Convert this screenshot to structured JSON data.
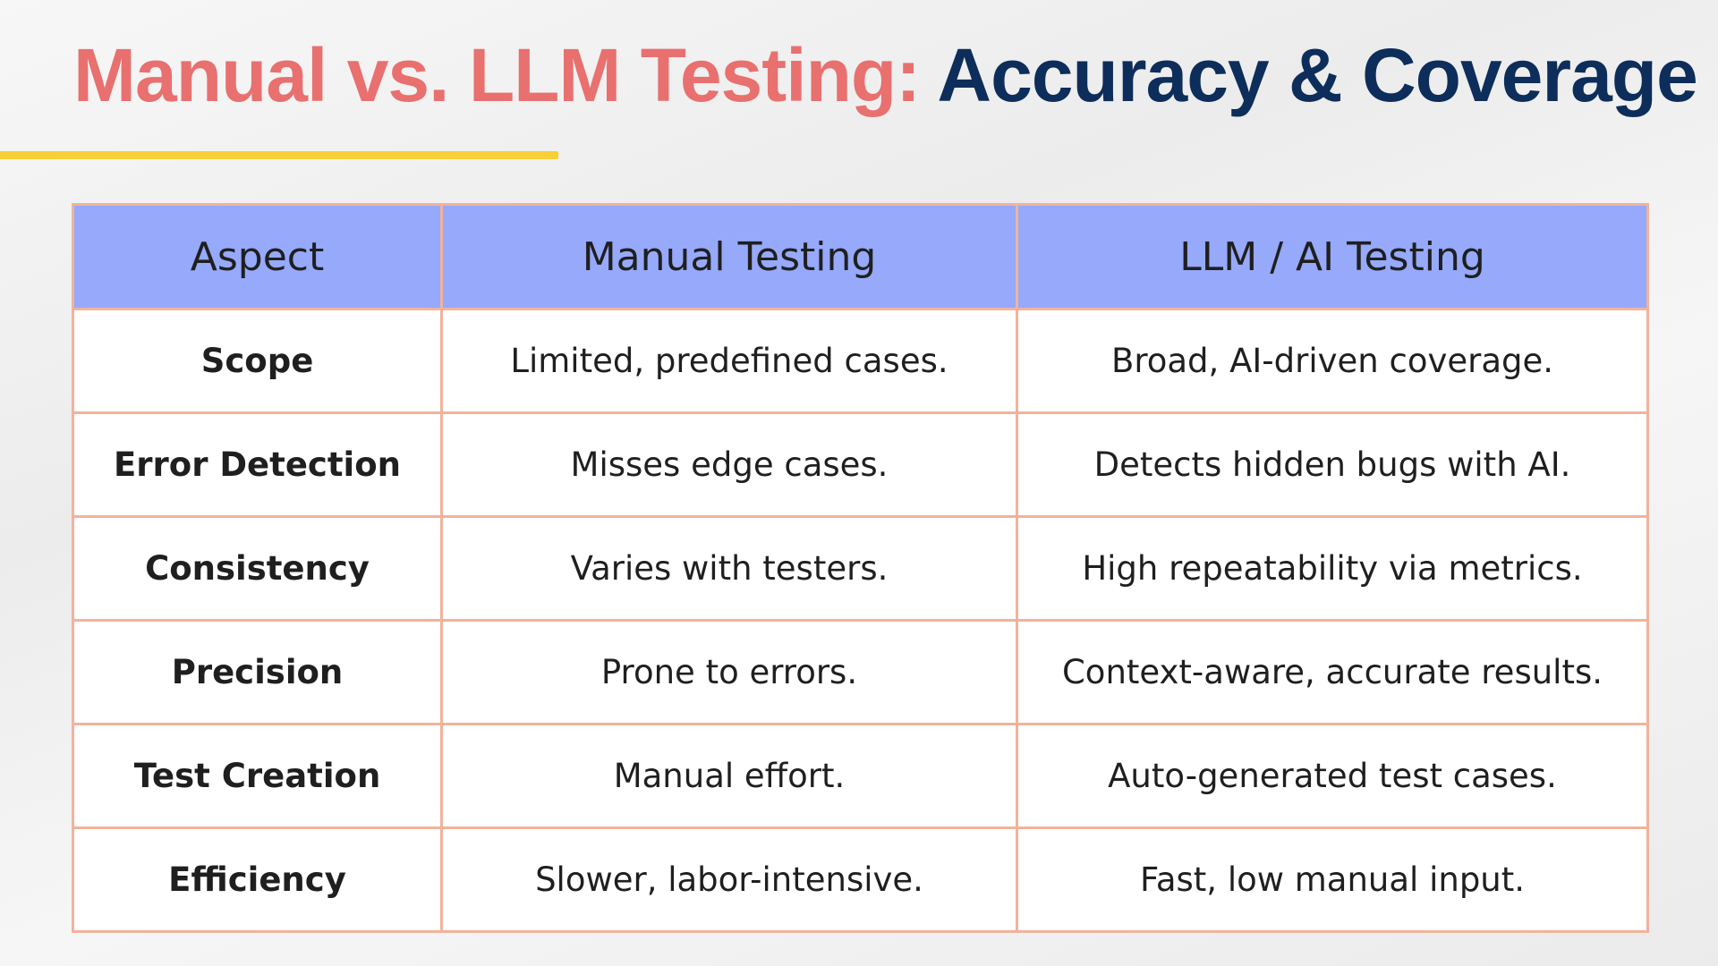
{
  "title": {
    "part1": "Manual vs. LLM Testing:",
    "part2": "Accuracy & Coverage"
  },
  "colors": {
    "title_accent": "#e8706f",
    "title_dark": "#0d2d5a",
    "underline": "#f7d038",
    "header_bg": "#96a9fb",
    "table_border": "#f1b39c"
  },
  "table": {
    "headers": [
      "Aspect",
      "Manual Testing",
      "LLM / AI Testing"
    ],
    "rows": [
      {
        "aspect": "Scope",
        "manual": "Limited, predefined cases.",
        "llm": "Broad, AI-driven coverage."
      },
      {
        "aspect": "Error Detection",
        "manual": "Misses edge cases.",
        "llm": "Detects hidden bugs with AI."
      },
      {
        "aspect": "Consistency",
        "manual": "Varies with testers.",
        "llm": "High repeatability via metrics."
      },
      {
        "aspect": "Precision",
        "manual": "Prone to errors.",
        "llm": "Context-aware, accurate results."
      },
      {
        "aspect": "Test Creation",
        "manual": "Manual effort.",
        "llm": "Auto-generated test cases."
      },
      {
        "aspect": "Efficiency",
        "manual": "Slower, labor-intensive.",
        "llm": "Fast, low manual input."
      }
    ]
  }
}
